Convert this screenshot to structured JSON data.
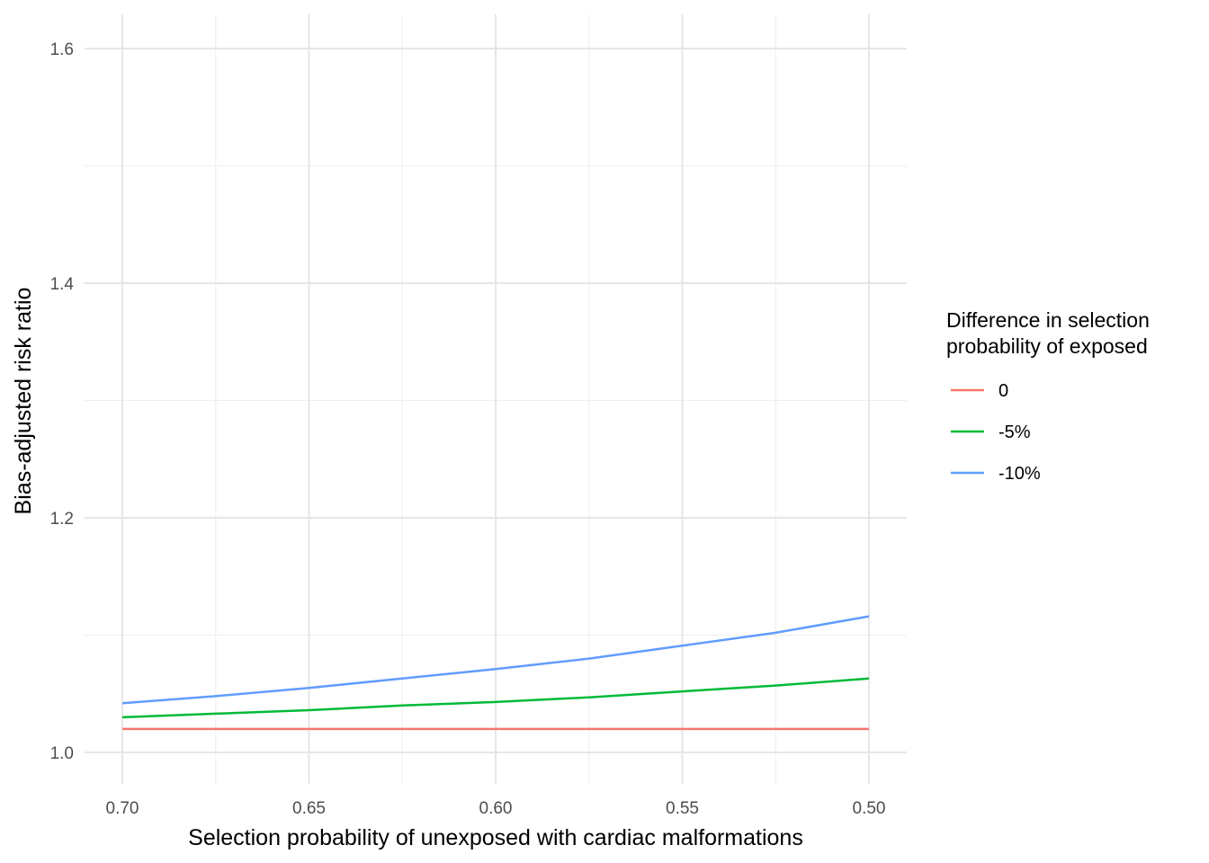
{
  "chart_data": {
    "type": "line",
    "title": "",
    "xlabel": "Selection probability of unexposed with cardiac malformations",
    "ylabel": "Bias-adjusted risk ratio",
    "x_reversed": true,
    "xlim": [
      0.7,
      0.5
    ],
    "ylim": [
      0.97,
      1.63
    ],
    "x_ticks": [
      0.7,
      0.65,
      0.6,
      0.55,
      0.5
    ],
    "x_tick_labels": [
      "0.70",
      "0.65",
      "0.60",
      "0.55",
      "0.50"
    ],
    "x_minor_ticks": [
      0.675,
      0.625,
      0.575,
      0.525
    ],
    "y_ticks": [
      1.0,
      1.2,
      1.4,
      1.6
    ],
    "y_tick_labels": [
      "1.0",
      "1.2",
      "1.4",
      "1.6"
    ],
    "y_minor_ticks": [
      1.1,
      1.3,
      1.5
    ],
    "grid": true,
    "x": [
      0.7,
      0.675,
      0.65,
      0.625,
      0.6,
      0.575,
      0.55,
      0.525,
      0.5
    ],
    "series": [
      {
        "name": "0",
        "color": "#F8766D",
        "values": [
          1.02,
          1.02,
          1.02,
          1.02,
          1.02,
          1.02,
          1.02,
          1.02,
          1.02
        ]
      },
      {
        "name": "-5%",
        "color": "#00BA38",
        "values": [
          1.03,
          1.033,
          1.036,
          1.04,
          1.043,
          1.047,
          1.052,
          1.057,
          1.063
        ]
      },
      {
        "name": "-10%",
        "color": "#619CFF",
        "values": [
          1.042,
          1.048,
          1.055,
          1.063,
          1.071,
          1.08,
          1.091,
          1.102,
          1.116
        ]
      }
    ],
    "legend": {
      "title_line1": "Difference in selection",
      "title_line2": "probability of exposed",
      "placement": "right"
    }
  }
}
